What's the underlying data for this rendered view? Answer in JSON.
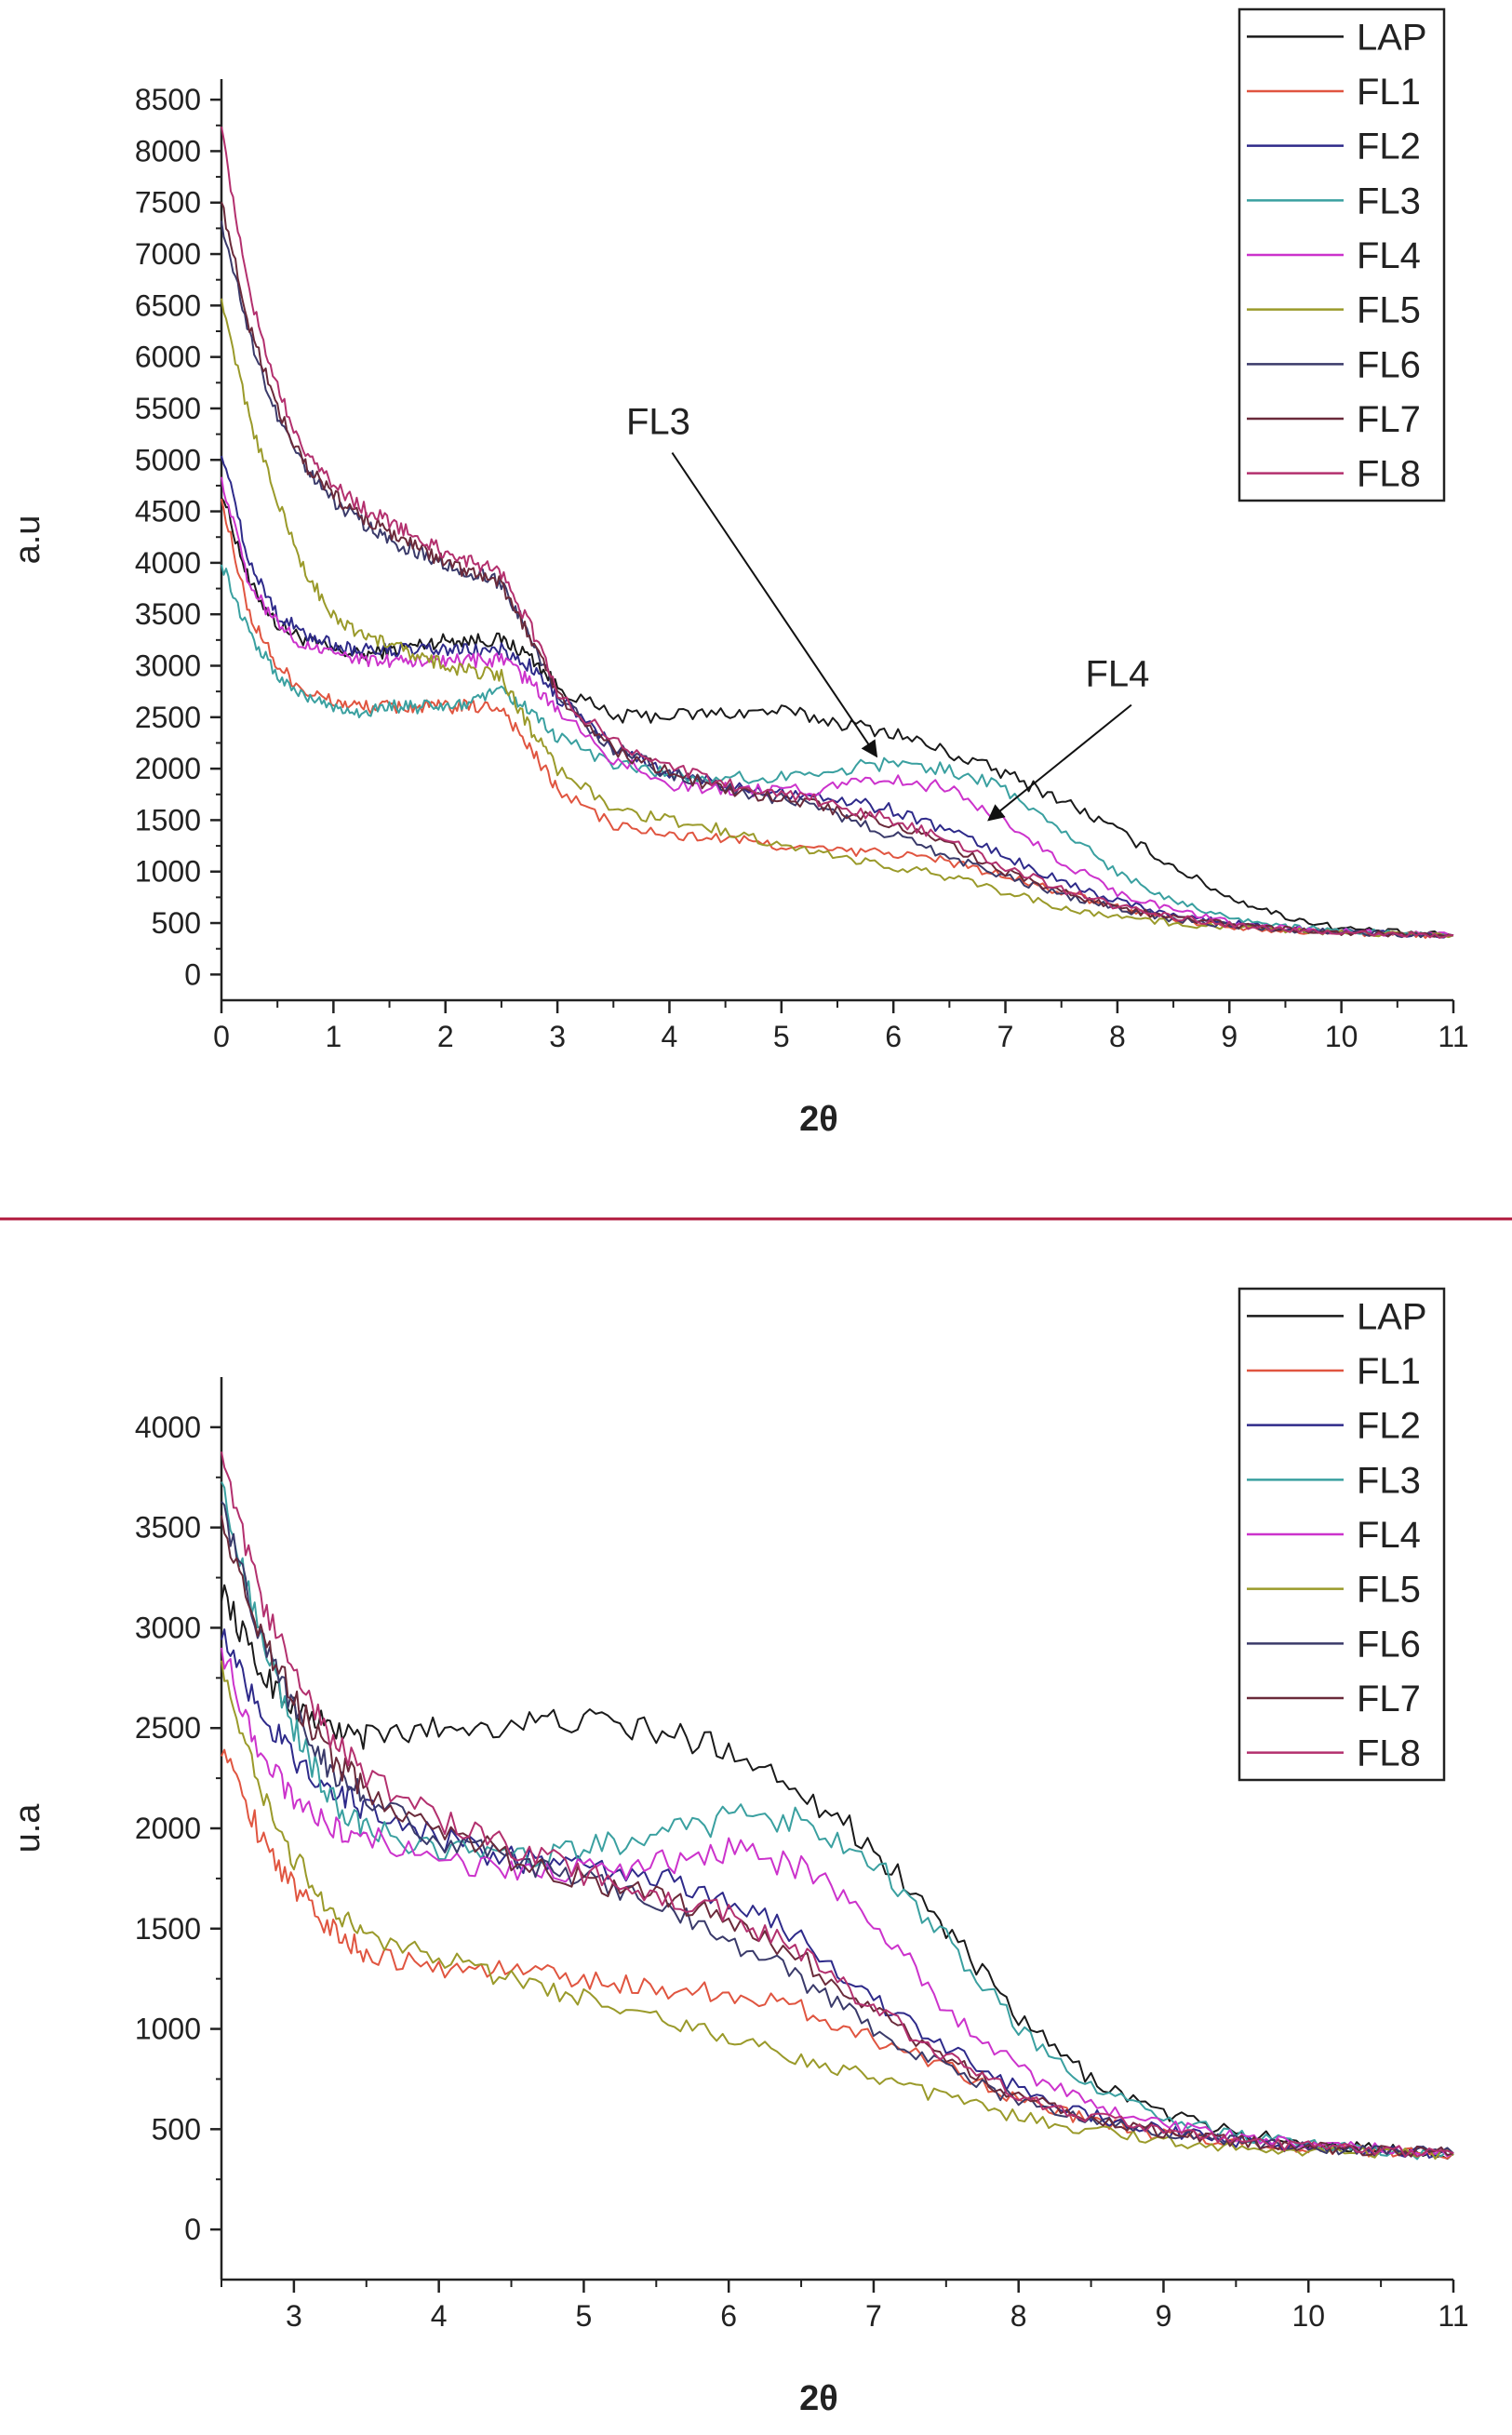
{
  "chart_data": [
    {
      "type": "line",
      "xlabel": "2θ",
      "ylabel": "a.u",
      "xlim": [
        0,
        11
      ],
      "ylim": [
        -250,
        8700
      ],
      "xticks": [
        0,
        1,
        2,
        3,
        4,
        5,
        6,
        7,
        8,
        9,
        10,
        11
      ],
      "yticks": [
        0,
        500,
        1000,
        1500,
        2000,
        2500,
        3000,
        3500,
        4000,
        4500,
        5000,
        5500,
        6000,
        6500,
        7000,
        7500,
        8000,
        8500
      ],
      "grid": false,
      "legend_position": "top-right",
      "x": [
        0,
        0.25,
        0.5,
        0.75,
        1,
        1.25,
        1.5,
        1.75,
        2,
        2.25,
        2.5,
        2.75,
        3,
        3.5,
        4,
        4.5,
        5,
        5.5,
        6,
        6.5,
        7,
        7.5,
        8,
        8.5,
        9,
        9.5,
        10,
        10.5,
        11
      ],
      "series": [
        {
          "name": "LAP",
          "color": "#1a1a1a",
          "values": [
            4700,
            3800,
            3400,
            3250,
            3150,
            3100,
            3150,
            3200,
            3250,
            3250,
            3250,
            3100,
            2800,
            2500,
            2520,
            2540,
            2560,
            2450,
            2350,
            2150,
            1950,
            1700,
            1400,
            1050,
            750,
            560,
            450,
            410,
            380
          ]
        },
        {
          "name": "FL1",
          "color": "#e05540",
          "values": [
            4600,
            3500,
            3000,
            2750,
            2650,
            2600,
            2600,
            2600,
            2600,
            2600,
            2600,
            2200,
            1800,
            1450,
            1350,
            1320,
            1250,
            1200,
            1180,
            1100,
            950,
            800,
            650,
            540,
            470,
            430,
            410,
            390,
            380
          ]
        },
        {
          "name": "FL2",
          "color": "#2e2a8a",
          "values": [
            5100,
            4000,
            3500,
            3300,
            3200,
            3150,
            3150,
            3150,
            3150,
            3150,
            3150,
            3000,
            2700,
            2200,
            1950,
            1850,
            1780,
            1700,
            1600,
            1400,
            1150,
            900,
            720,
            580,
            500,
            450,
            420,
            400,
            380
          ]
        },
        {
          "name": "FL3",
          "color": "#3aa0a0",
          "values": [
            4000,
            3300,
            2900,
            2700,
            2600,
            2550,
            2600,
            2600,
            2600,
            2650,
            2750,
            2550,
            2300,
            2050,
            1950,
            1900,
            1920,
            2000,
            2050,
            2000,
            1800,
            1400,
            1000,
            720,
            560,
            460,
            420,
            400,
            380
          ]
        },
        {
          "name": "FL4",
          "color": "#cc33cc",
          "values": [
            4800,
            3800,
            3400,
            3200,
            3100,
            3050,
            3050,
            3050,
            3050,
            3050,
            3050,
            2850,
            2550,
            2100,
            1850,
            1800,
            1780,
            1820,
            1900,
            1800,
            1500,
            1100,
            800,
            620,
            510,
            450,
            420,
            400,
            380
          ]
        },
        {
          "name": "FL5",
          "color": "#9a9a2a",
          "values": [
            6500,
            5400,
            4600,
            3900,
            3500,
            3300,
            3200,
            3100,
            3000,
            2950,
            2900,
            2400,
            2000,
            1600,
            1500,
            1400,
            1250,
            1150,
            1050,
            950,
            800,
            650,
            560,
            500,
            460,
            430,
            410,
            390,
            380
          ]
        },
        {
          "name": "FL6",
          "color": "#3a3a6a",
          "values": [
            7300,
            6200,
            5400,
            4900,
            4600,
            4400,
            4200,
            4100,
            4000,
            3900,
            3800,
            3300,
            2700,
            2200,
            1950,
            1800,
            1700,
            1550,
            1350,
            1150,
            950,
            780,
            640,
            540,
            480,
            440,
            410,
            390,
            380
          ]
        },
        {
          "name": "FL7",
          "color": "#6a2a3a",
          "values": [
            7500,
            6300,
            5500,
            4950,
            4650,
            4450,
            4300,
            4150,
            4000,
            3900,
            3800,
            3300,
            2700,
            2200,
            1950,
            1800,
            1700,
            1600,
            1450,
            1250,
            1000,
            800,
            650,
            550,
            490,
            440,
            410,
            390,
            380
          ]
        },
        {
          "name": "FL8",
          "color": "#b3306e",
          "values": [
            8200,
            6600,
            5700,
            5050,
            4750,
            4550,
            4400,
            4250,
            4100,
            4000,
            3900,
            3400,
            2750,
            2250,
            2000,
            1850,
            1750,
            1650,
            1500,
            1300,
            1050,
            830,
            660,
            550,
            490,
            440,
            410,
            390,
            380
          ]
        }
      ],
      "annotations": [
        {
          "text": "FL3",
          "x": 3.9,
          "y": 5250,
          "arrow_to_x": 5.85,
          "arrow_to_y": 2120
        },
        {
          "text": "FL4",
          "x": 8.0,
          "y": 2800,
          "arrow_to_x": 6.85,
          "arrow_to_y": 1500
        }
      ]
    },
    {
      "type": "line",
      "xlabel": "2θ",
      "ylabel": "u.a",
      "xlim": [
        2.5,
        11
      ],
      "ylim": [
        -250,
        4250
      ],
      "xticks": [
        3,
        4,
        5,
        6,
        7,
        8,
        9,
        10,
        11
      ],
      "yticks": [
        0,
        500,
        1000,
        1500,
        2000,
        2500,
        3000,
        3500,
        4000
      ],
      "grid": false,
      "legend_position": "top-right",
      "x": [
        2.5,
        2.75,
        3,
        3.25,
        3.5,
        4,
        4.5,
        5,
        5.5,
        6,
        6.5,
        7,
        7.5,
        8,
        8.5,
        9,
        9.5,
        10,
        10.5,
        11
      ],
      "series": [
        {
          "name": "LAP",
          "color": "#1a1a1a",
          "values": [
            3200,
            2800,
            2600,
            2500,
            2450,
            2500,
            2520,
            2540,
            2480,
            2400,
            2200,
            1900,
            1500,
            1050,
            750,
            580,
            480,
            430,
            400,
            380
          ]
        },
        {
          "name": "FL1",
          "color": "#e05540",
          "values": [
            2400,
            2000,
            1700,
            1500,
            1380,
            1300,
            1300,
            1250,
            1200,
            1180,
            1100,
            950,
            820,
            650,
            540,
            470,
            430,
            410,
            390,
            380
          ]
        },
        {
          "name": "FL2",
          "color": "#2e2a8a",
          "values": [
            3000,
            2600,
            2350,
            2200,
            2100,
            1950,
            1850,
            1800,
            1750,
            1650,
            1450,
            1150,
            900,
            700,
            570,
            490,
            440,
            410,
            390,
            380
          ]
        },
        {
          "name": "FL3",
          "color": "#3aa0a0",
          "values": [
            3700,
            3000,
            2500,
            2150,
            2000,
            1900,
            1850,
            1900,
            1950,
            2050,
            2050,
            1850,
            1450,
            1000,
            720,
            560,
            470,
            420,
            390,
            370
          ]
        },
        {
          "name": "FL4",
          "color": "#cc33cc",
          "values": [
            2900,
            2400,
            2150,
            2000,
            1950,
            1850,
            1800,
            1780,
            1820,
            1900,
            1800,
            1550,
            1100,
            800,
            620,
            520,
            460,
            420,
            400,
            380
          ]
        },
        {
          "name": "FL5",
          "color": "#9a9a2a",
          "values": [
            2800,
            2200,
            1850,
            1600,
            1450,
            1350,
            1250,
            1150,
            1050,
            950,
            850,
            750,
            650,
            560,
            490,
            440,
            410,
            390,
            380,
            370
          ]
        },
        {
          "name": "FL6",
          "color": "#3a3a6a",
          "values": [
            3600,
            3000,
            2600,
            2300,
            2150,
            1950,
            1850,
            1750,
            1650,
            1450,
            1250,
            1000,
            800,
            640,
            540,
            480,
            440,
            410,
            390,
            380
          ]
        },
        {
          "name": "FL7",
          "color": "#6a2a3a",
          "values": [
            3500,
            3000,
            2650,
            2350,
            2200,
            2000,
            1850,
            1750,
            1650,
            1550,
            1350,
            1080,
            850,
            660,
            560,
            490,
            440,
            410,
            390,
            380
          ]
        },
        {
          "name": "FL8",
          "color": "#b3306e",
          "values": [
            3850,
            3200,
            2750,
            2450,
            2250,
            2050,
            1900,
            1780,
            1680,
            1580,
            1380,
            1100,
            860,
            670,
            560,
            490,
            440,
            410,
            390,
            380
          ]
        }
      ]
    }
  ],
  "divider_color": "#b0183c"
}
